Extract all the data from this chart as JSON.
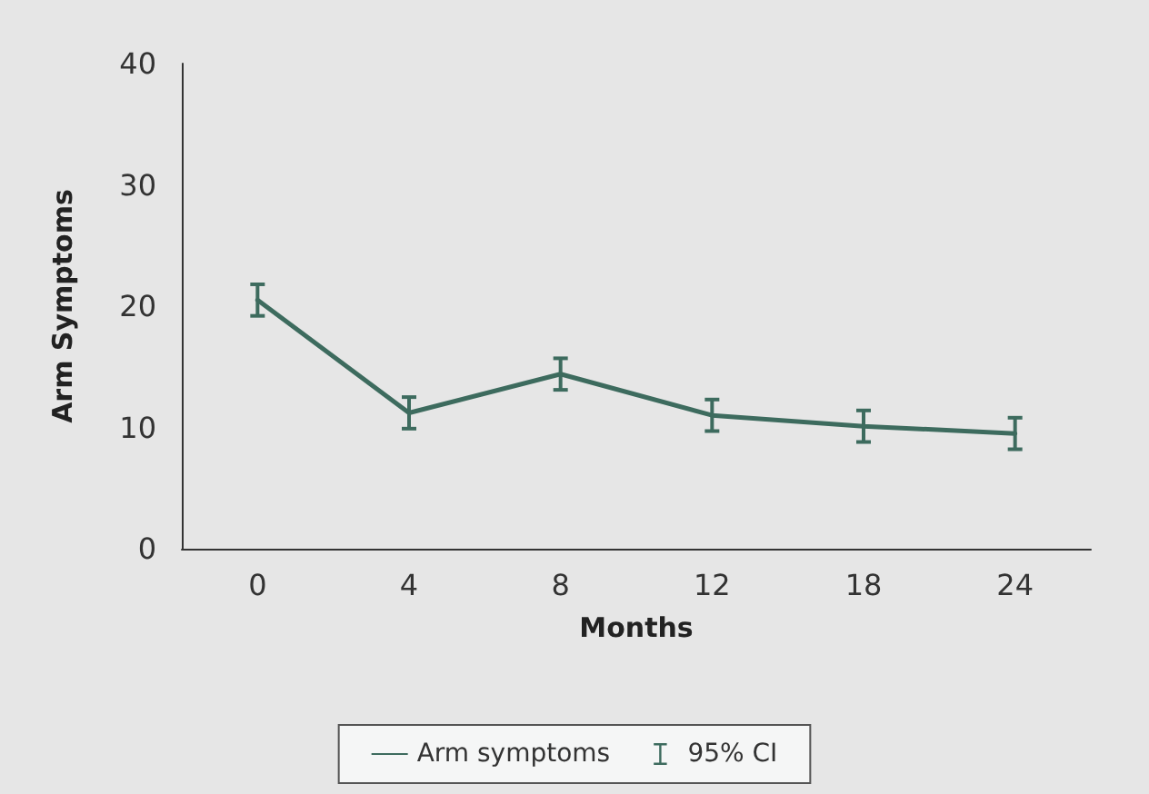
{
  "chart_data": {
    "type": "line",
    "xlabel": "Months",
    "ylabel": "Arm Symptoms",
    "categories": [
      "0",
      "4",
      "8",
      "12",
      "18",
      "24"
    ],
    "series": [
      {
        "name": "Arm symptoms",
        "color": "#3d6b5e",
        "values": [
          20.5,
          11.2,
          14.4,
          11.0,
          10.1,
          9.5
        ],
        "errors": [
          1.3,
          1.3,
          1.3,
          1.3,
          1.3,
          1.3
        ]
      }
    ],
    "annotations": [
      "95% CI"
    ],
    "ylim": [
      0,
      40
    ],
    "yticks": [
      0,
      10,
      20,
      30,
      40
    ],
    "grid": false,
    "legend": "bottom",
    "marker": "none",
    "line_style": "solid"
  }
}
